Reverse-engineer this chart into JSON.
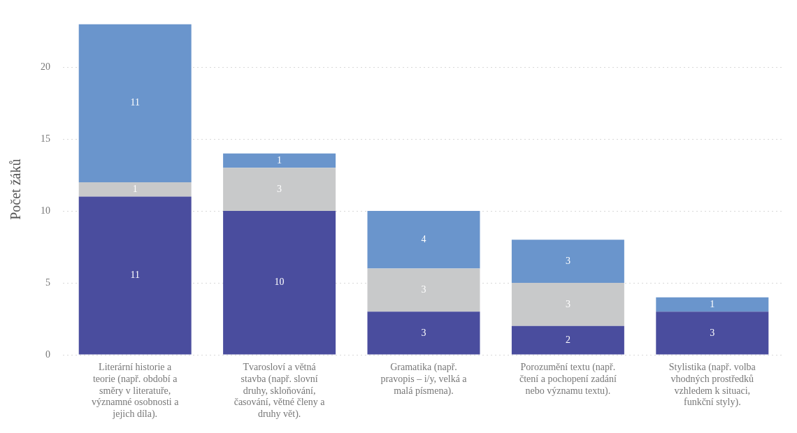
{
  "chart_data": {
    "type": "bar",
    "ylabel": "Počet žáků",
    "stacked": true,
    "grid": "y",
    "legend": false,
    "categories": [
      "Literární historie a teorie (např. období a směry v literatuře, významné osobnosti a jejich díla).",
      "Tvarosloví a větná stavba (např. slovní druhy, skloňování, časování, větné členy a druhy vět).",
      "Gramatika (např. pravopis – i/y, velká a malá písmena).",
      "Porozumění textu (např. čtení a pochopení zadání nebo významu textu).",
      "Stylistika (např. volba vhodných prostředků vzhledem k situaci, funkční styly)."
    ],
    "series": [
      {
        "color": "#4a4d9e",
        "values": [
          11,
          10,
          3,
          2,
          3
        ],
        "value_labels": [
          "11",
          "10",
          "3",
          "2",
          "3"
        ]
      },
      {
        "color": "#c8c9ca",
        "values": [
          1,
          3,
          3,
          3,
          0
        ],
        "value_labels": [
          "1",
          "3",
          "3",
          "3",
          null
        ]
      },
      {
        "color": "#6a95cc",
        "values": [
          11,
          1,
          4,
          3,
          1
        ],
        "value_labels": [
          "11",
          "1",
          "4",
          "3",
          "1"
        ]
      }
    ],
    "ylim": [
      0,
      23
    ],
    "yticks": [
      0,
      5,
      10,
      15,
      20
    ]
  }
}
